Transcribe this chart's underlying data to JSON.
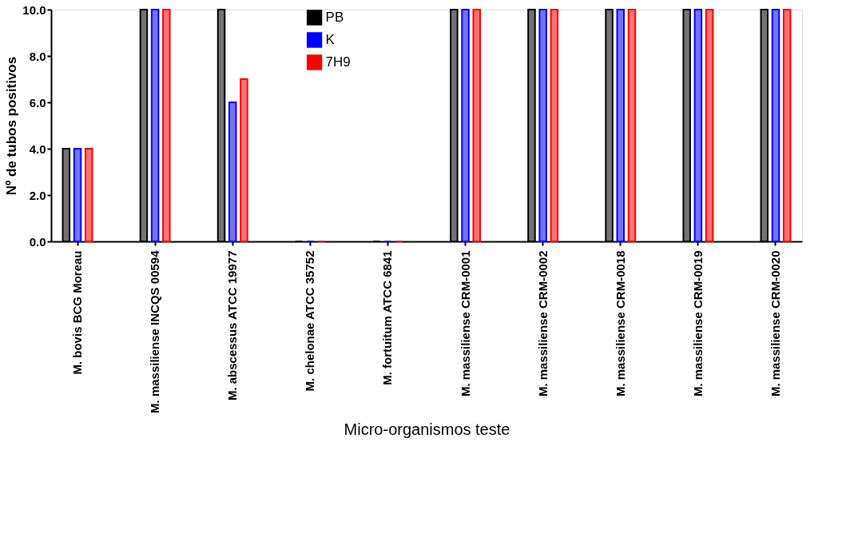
{
  "chart_data": {
    "type": "bar",
    "xlabel": "Micro-organismos teste",
    "ylabel": "Nº de tubos positivos",
    "categories": [
      "M. bovis BCG Moreau",
      "M. massiliense INCQS 00594",
      "M. abscessus ATCC 19977",
      "M. chelonae ATCC 35752",
      "M. fortuitum ATCC 6841",
      "M. massiliense CRM-0001",
      "M. massiliense CRM-0002",
      "M. massiliense CRM-0018",
      "M. massiliense CRM-0019",
      "M. massiliense CRM-0020"
    ],
    "series": [
      {
        "name": "PB",
        "color": "#000000",
        "values": [
          4,
          10,
          10,
          0,
          0,
          10,
          10,
          10,
          10,
          10
        ]
      },
      {
        "name": "K",
        "color": "#0000ff",
        "values": [
          4,
          10,
          6,
          0,
          0,
          10,
          10,
          10,
          10,
          10
        ]
      },
      {
        "name": "7H9",
        "color": "#ff0000",
        "values": [
          4,
          10,
          7,
          0,
          0,
          10,
          10,
          10,
          10,
          10
        ]
      }
    ],
    "ylim": [
      0,
      10
    ],
    "yticks": [
      {
        "value": 0,
        "label": "0.0"
      },
      {
        "value": 2,
        "label": "2.0"
      },
      {
        "value": 4,
        "label": "4.0"
      },
      {
        "value": 6,
        "label": "6.0"
      },
      {
        "value": 8,
        "label": "8.0"
      },
      {
        "value": 10,
        "label": "10.0"
      }
    ],
    "grid": false,
    "legend": "top"
  }
}
